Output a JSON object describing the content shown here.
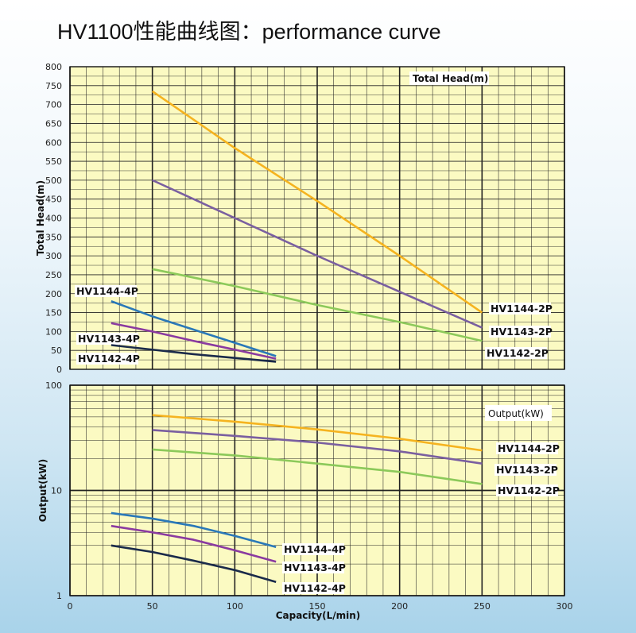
{
  "title": "HV1100性能曲线图：performance curve",
  "colors": {
    "plot_bg": "#fbfac2",
    "grid": "#222222",
    "HV1144-2P": "#f5b31f",
    "HV1143-2P": "#7a5fa0",
    "HV1142-2P": "#8cc95a",
    "HV1144-4P": "#2a78b8",
    "HV1143-4P": "#8a3aa0",
    "HV1142-4P": "#1a2a4a"
  },
  "chart_data": [
    {
      "type": "line",
      "name": "head",
      "legend_title": "Total Head(m)",
      "ylabel": "Total Head(m)",
      "xlim": [
        0,
        300
      ],
      "ylim": [
        0,
        800
      ],
      "yticks": [
        0,
        50,
        100,
        150,
        200,
        250,
        300,
        350,
        400,
        450,
        500,
        550,
        600,
        650,
        700,
        750,
        800
      ],
      "grid": true,
      "series": [
        {
          "name": "HV1144-2P",
          "x": [
            50,
            100,
            150,
            200,
            250
          ],
          "y": [
            735,
            585,
            445,
            300,
            150
          ]
        },
        {
          "name": "HV1143-2P",
          "x": [
            50,
            100,
            150,
            200,
            250
          ],
          "y": [
            500,
            400,
            300,
            205,
            110
          ]
        },
        {
          "name": "HV1142-2P",
          "x": [
            50,
            100,
            150,
            200,
            250
          ],
          "y": [
            265,
            220,
            170,
            125,
            75
          ]
        },
        {
          "name": "HV1144-4P",
          "x": [
            25,
            50,
            75,
            100,
            125
          ],
          "y": [
            180,
            140,
            105,
            70,
            35
          ]
        },
        {
          "name": "HV1143-4P",
          "x": [
            25,
            50,
            75,
            100,
            125
          ],
          "y": [
            122,
            100,
            75,
            52,
            28
          ]
        },
        {
          "name": "HV1142-4P",
          "x": [
            25,
            50,
            75,
            100,
            125
          ],
          "y": [
            64,
            52,
            40,
            30,
            20
          ]
        }
      ]
    },
    {
      "type": "line",
      "name": "output",
      "legend_title": "Output(kW)",
      "ylabel": "Output(kW)",
      "xlabel": "Capacity(L/min)",
      "xlim": [
        0,
        300
      ],
      "ylim": [
        1,
        100
      ],
      "yscale": "log",
      "yticks": [
        1,
        10,
        100
      ],
      "xticks": [
        0,
        50,
        100,
        150,
        200,
        250,
        300
      ],
      "grid": true,
      "series": [
        {
          "name": "HV1144-2P",
          "x": [
            50,
            100,
            150,
            200,
            250
          ],
          "y": [
            52,
            45,
            38,
            31,
            24
          ]
        },
        {
          "name": "HV1143-2P",
          "x": [
            50,
            100,
            150,
            200,
            250
          ],
          "y": [
            37.5,
            33,
            28.5,
            23.5,
            18
          ]
        },
        {
          "name": "HV1142-2P",
          "x": [
            50,
            100,
            150,
            200,
            250
          ],
          "y": [
            24.5,
            21.5,
            18,
            15,
            11.5
          ]
        },
        {
          "name": "HV1144-4P",
          "x": [
            25,
            50,
            75,
            100,
            125
          ],
          "y": [
            6.1,
            5.4,
            4.6,
            3.7,
            2.9
          ]
        },
        {
          "name": "HV1143-4P",
          "x": [
            25,
            50,
            75,
            100,
            125
          ],
          "y": [
            4.6,
            4.0,
            3.4,
            2.7,
            2.1
          ]
        },
        {
          "name": "HV1142-4P",
          "x": [
            25,
            50,
            75,
            100,
            125
          ],
          "y": [
            3.0,
            2.6,
            2.15,
            1.75,
            1.35
          ]
        }
      ]
    }
  ]
}
